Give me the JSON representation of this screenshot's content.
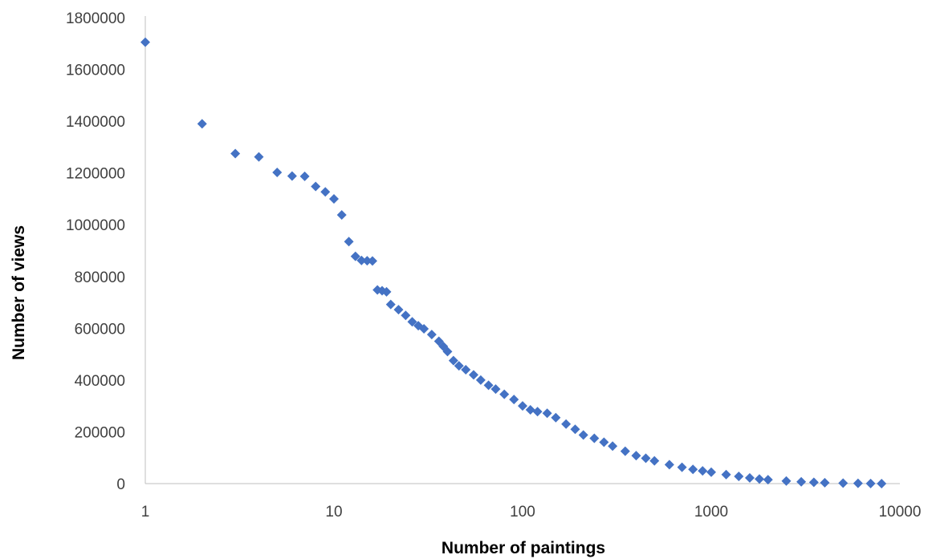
{
  "chart_data": {
    "type": "scatter",
    "xscale": "log",
    "xlabel": "Number of paintings",
    "ylabel": "Number of views",
    "xlim": [
      1,
      10000
    ],
    "ylim": [
      0,
      1800000
    ],
    "x_ticks": [
      1,
      10,
      100,
      1000,
      10000
    ],
    "x_tick_labels": [
      "1",
      "10",
      "100",
      "1000",
      "10000"
    ],
    "y_ticks": [
      0,
      200000,
      400000,
      600000,
      800000,
      1000000,
      1200000,
      1400000,
      1600000,
      1800000
    ],
    "y_tick_labels": [
      "0",
      "200000",
      "400000",
      "600000",
      "800000",
      "1000000",
      "1200000",
      "1400000",
      "1600000",
      "1800000"
    ],
    "grid": false,
    "legend": "none",
    "marker": "diamond",
    "color": "#4472C4",
    "points": [
      [
        1,
        1705000
      ],
      [
        2,
        1390000
      ],
      [
        3,
        1275000
      ],
      [
        4,
        1262000
      ],
      [
        5,
        1202000
      ],
      [
        6,
        1188000
      ],
      [
        7,
        1187000
      ],
      [
        8,
        1148000
      ],
      [
        9,
        1127000
      ],
      [
        10,
        1100000
      ],
      [
        11,
        1038000
      ],
      [
        12,
        935000
      ],
      [
        13,
        878000
      ],
      [
        14,
        862000
      ],
      [
        15,
        861000
      ],
      [
        16,
        860000
      ],
      [
        17,
        748000
      ],
      [
        18,
        745000
      ],
      [
        19,
        741000
      ],
      [
        20,
        692000
      ],
      [
        22,
        672000
      ],
      [
        24,
        650000
      ],
      [
        26,
        625000
      ],
      [
        28,
        610000
      ],
      [
        30,
        598000
      ],
      [
        33,
        576000
      ],
      [
        36,
        550000
      ],
      [
        38,
        530000
      ],
      [
        40,
        510000
      ],
      [
        43,
        475000
      ],
      [
        46,
        455000
      ],
      [
        50,
        440000
      ],
      [
        55,
        420000
      ],
      [
        60,
        400000
      ],
      [
        66,
        380000
      ],
      [
        72,
        365000
      ],
      [
        80,
        345000
      ],
      [
        90,
        325000
      ],
      [
        100,
        300000
      ],
      [
        110,
        285000
      ],
      [
        120,
        278000
      ],
      [
        135,
        272000
      ],
      [
        150,
        255000
      ],
      [
        170,
        230000
      ],
      [
        190,
        210000
      ],
      [
        210,
        188000
      ],
      [
        240,
        175000
      ],
      [
        270,
        160000
      ],
      [
        300,
        145000
      ],
      [
        350,
        125000
      ],
      [
        400,
        108000
      ],
      [
        450,
        98000
      ],
      [
        500,
        88000
      ],
      [
        600,
        73000
      ],
      [
        700,
        63000
      ],
      [
        800,
        55000
      ],
      [
        900,
        49000
      ],
      [
        1000,
        44000
      ],
      [
        1200,
        35000
      ],
      [
        1400,
        28000
      ],
      [
        1600,
        22000
      ],
      [
        1800,
        18000
      ],
      [
        2000,
        15000
      ],
      [
        2500,
        10000
      ],
      [
        3000,
        7000
      ],
      [
        3500,
        5000
      ],
      [
        4000,
        3500
      ],
      [
        5000,
        2000
      ],
      [
        6000,
        1000
      ],
      [
        7000,
        500
      ],
      [
        8000,
        100
      ]
    ]
  }
}
